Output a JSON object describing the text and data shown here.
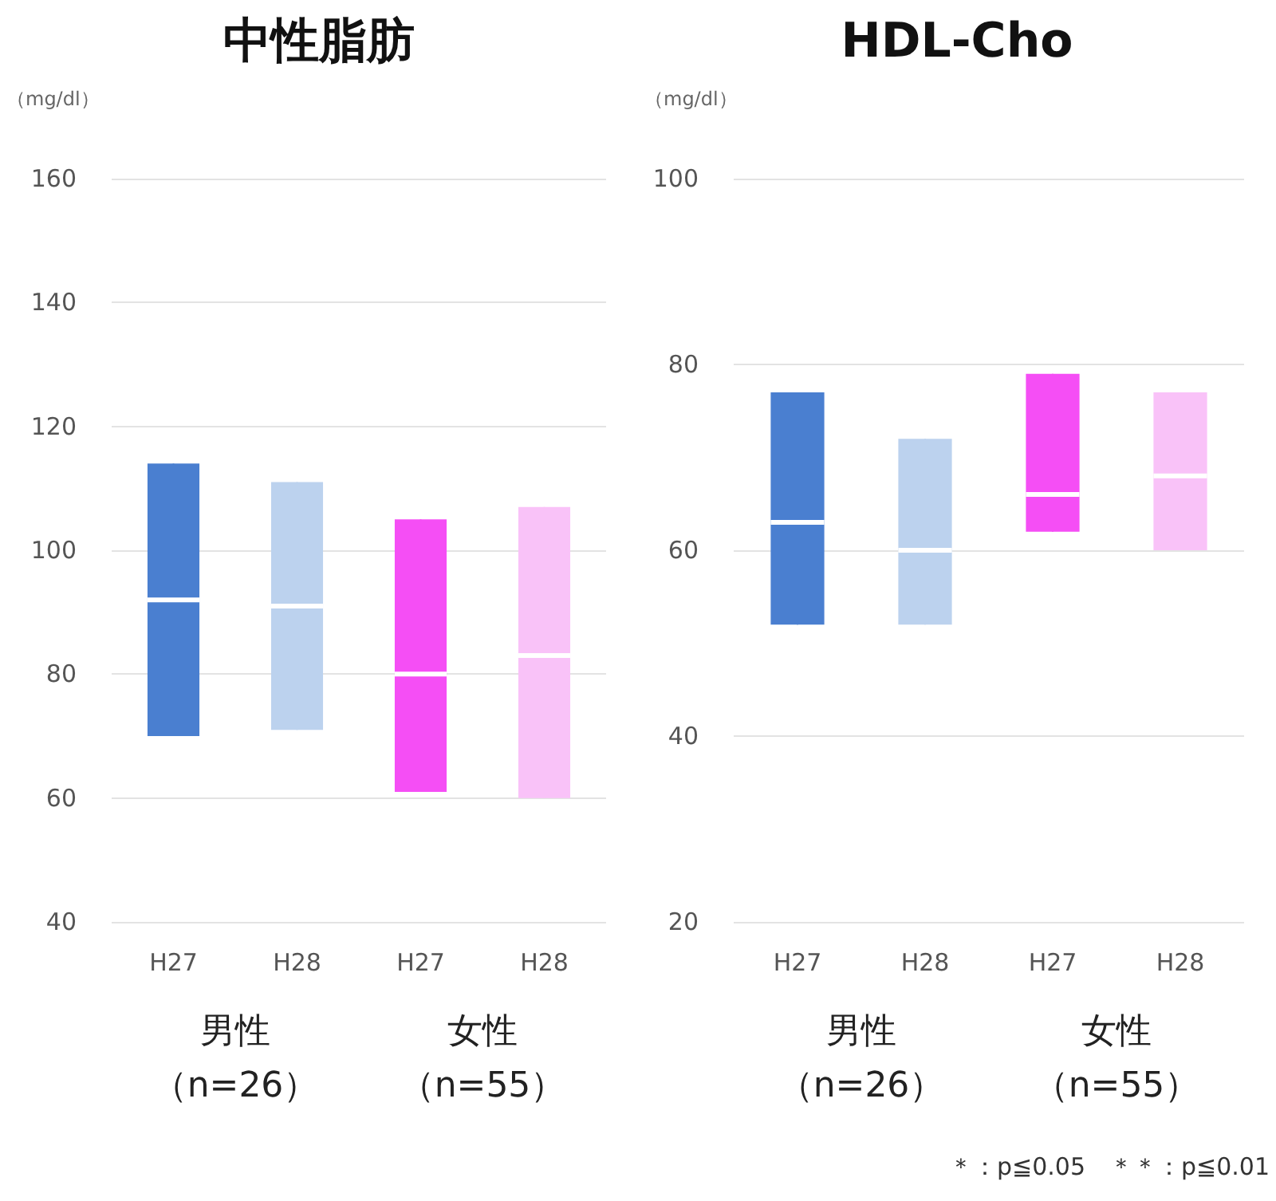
{
  "chart_data": [
    {
      "type": "box",
      "title": "中性脂肪",
      "ylabel": "（mg/dl）",
      "categories": [
        "H27",
        "H28",
        "H27",
        "H28"
      ],
      "boxes": [
        {
          "low": 70,
          "q1": 70,
          "median": 92,
          "q3": 114,
          "high": 114
        },
        {
          "low": 71,
          "q1": 71,
          "median": 91,
          "q3": 111,
          "high": 111
        },
        {
          "low": 61,
          "q1": 61,
          "median": 80,
          "q3": 105,
          "high": 105
        },
        {
          "low": 60,
          "q1": 60,
          "median": 83,
          "q3": 107,
          "high": 107
        }
      ],
      "colors": [
        "#4a7fd0",
        "#bcd2ee",
        "#f54ef5",
        "#f9c2f8"
      ],
      "ylim": [
        40,
        160
      ],
      "yticks": [
        40,
        60,
        80,
        100,
        120,
        140,
        160
      ],
      "grid": "y",
      "annotations": [
        "男性",
        "（n=26）",
        "女性",
        "（n=55）"
      ]
    },
    {
      "type": "box",
      "title": "HDL-Cho",
      "ylabel": "（mg/dl）",
      "categories": [
        "H27",
        "H28",
        "H27",
        "H28"
      ],
      "boxes": [
        {
          "low": 52,
          "q1": 52,
          "median": 63,
          "q3": 77,
          "high": 77
        },
        {
          "low": 52,
          "q1": 52,
          "median": 60,
          "q3": 72,
          "high": 72
        },
        {
          "low": 62,
          "q1": 62,
          "median": 66,
          "q3": 79,
          "high": 79
        },
        {
          "low": 60,
          "q1": 60,
          "median": 68,
          "q3": 77,
          "high": 77
        }
      ],
      "colors": [
        "#4a7fd0",
        "#bcd2ee",
        "#f54ef5",
        "#f9c2f8"
      ],
      "ylim": [
        20,
        100
      ],
      "yticks": [
        20,
        40,
        60,
        80,
        100
      ],
      "grid": "y",
      "annotations": [
        "男性",
        "（n=26）",
        "女性",
        "（n=55）",
        "＊：p≦0.05　＊＊：p≦0.01"
      ]
    }
  ]
}
